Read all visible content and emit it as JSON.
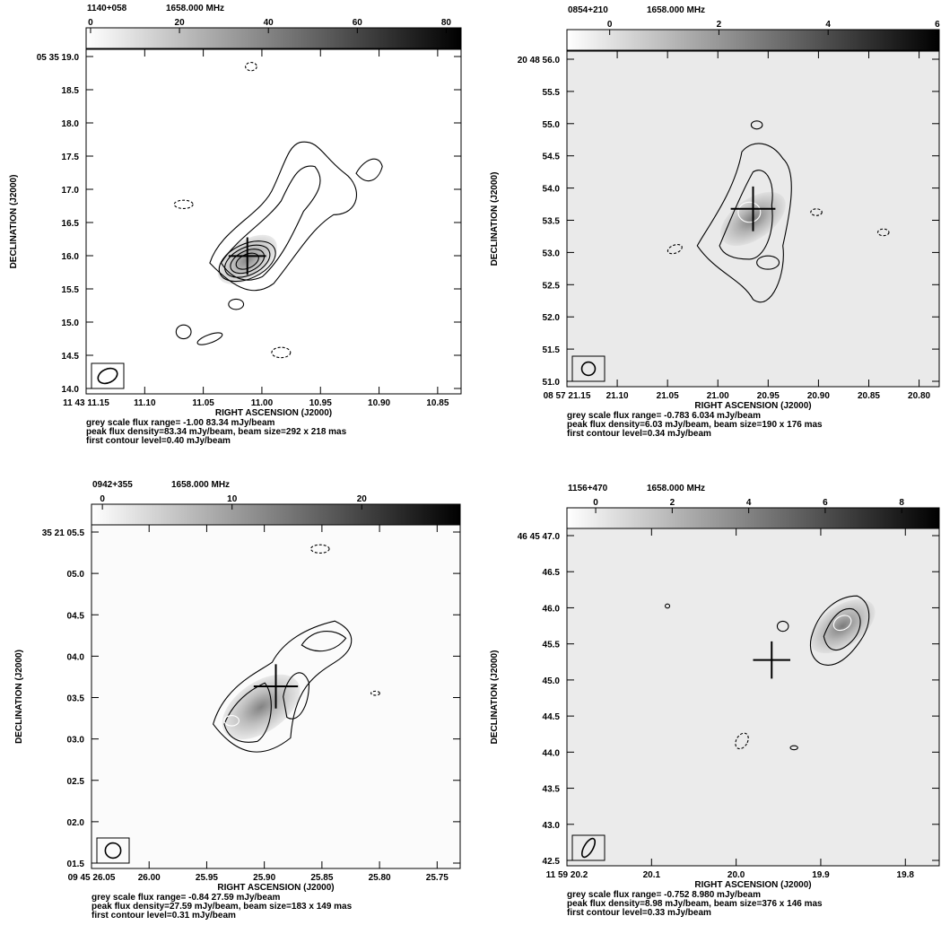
{
  "axis_labels": {
    "x": "RIGHT ASCENSION (J2000)",
    "y": "DECLINATION (J2000)"
  },
  "chart_data": [
    {
      "type": "heatmap",
      "source": "1140+058",
      "frequency": "1658.000 MHz",
      "colorbar": {
        "ticks": [
          "0",
          "20",
          "40",
          "60",
          "80"
        ],
        "values": [
          0,
          20,
          40,
          60,
          80
        ],
        "range": [
          -1.0,
          83.34
        ]
      },
      "x_ticks": [
        "11 43 11.15",
        "11.10",
        "11.05",
        "11.00",
        "10.95",
        "10.90",
        "10.85"
      ],
      "y_ticks": [
        "05 35 19.0",
        "18.5",
        "18.0",
        "17.5",
        "17.0",
        "16.5",
        "16.0",
        "15.5",
        "15.0",
        "14.5",
        "14.0"
      ],
      "notes": [
        "grey scale flux range= -1.00 83.34 mJy/beam",
        "peak flux density=83.34 mJy/beam, beam size=292 x 218 mas",
        "first contour level=0.40 mJy/beam"
      ]
    },
    {
      "type": "heatmap",
      "source": "0854+210",
      "frequency": "1658.000 MHz",
      "colorbar": {
        "ticks": [
          "0",
          "2",
          "4",
          "6"
        ],
        "values": [
          0,
          2,
          4,
          6
        ],
        "range": [
          -0.783,
          6.034
        ]
      },
      "x_ticks": [
        "08 57 21.15",
        "21.10",
        "21.05",
        "21.00",
        "20.95",
        "20.90",
        "20.85",
        "20.80"
      ],
      "y_ticks": [
        "20 48 56.0",
        "55.5",
        "55.0",
        "54.5",
        "54.0",
        "53.5",
        "53.0",
        "52.5",
        "52.0",
        "51.5",
        "51.0"
      ],
      "notes": [
        "grey scale flux range= -0.783 6.034 mJy/beam",
        "peak flux density=6.03 mJy/beam, beam size=190 x 176 mas",
        "first contour level=0.34 mJy/beam"
      ]
    },
    {
      "type": "heatmap",
      "source": "0942+355",
      "frequency": "1658.000 MHz",
      "colorbar": {
        "ticks": [
          "0",
          "10",
          "20"
        ],
        "values": [
          0,
          10,
          20
        ],
        "range": [
          -0.84,
          27.59
        ]
      },
      "x_ticks": [
        "09 45 26.05",
        "26.00",
        "25.95",
        "25.90",
        "25.85",
        "25.80",
        "25.75"
      ],
      "y_ticks": [
        "35 21 05.5",
        "05.0",
        "04.5",
        "04.0",
        "03.5",
        "03.0",
        "02.5",
        "02.0",
        "01.5"
      ],
      "notes": [
        "grey scale flux range= -0.84 27.59 mJy/beam",
        "peak flux density=27.59 mJy/beam, beam size=183 x 149 mas",
        "first contour level=0.31 mJy/beam"
      ]
    },
    {
      "type": "heatmap",
      "source": "1156+470",
      "frequency": "1658.000 MHz",
      "colorbar": {
        "ticks": [
          "0",
          "2",
          "4",
          "6",
          "8"
        ],
        "values": [
          0,
          2,
          4,
          6,
          8
        ],
        "range": [
          -0.752,
          8.98
        ]
      },
      "x_ticks": [
        "11 59 20.2",
        "20.1",
        "20.0",
        "19.9",
        "19.8"
      ],
      "y_ticks": [
        "46 45 47.0",
        "46.5",
        "46.0",
        "45.5",
        "45.0",
        "44.5",
        "44.0",
        "43.5",
        "43.0",
        "42.5"
      ],
      "notes": [
        "grey scale flux range= -0.752 8.980 mJy/beam",
        "peak flux density=8.98 mJy/beam, beam size=376 x 146 mas",
        "first contour level=0.33 mJy/beam"
      ]
    }
  ]
}
